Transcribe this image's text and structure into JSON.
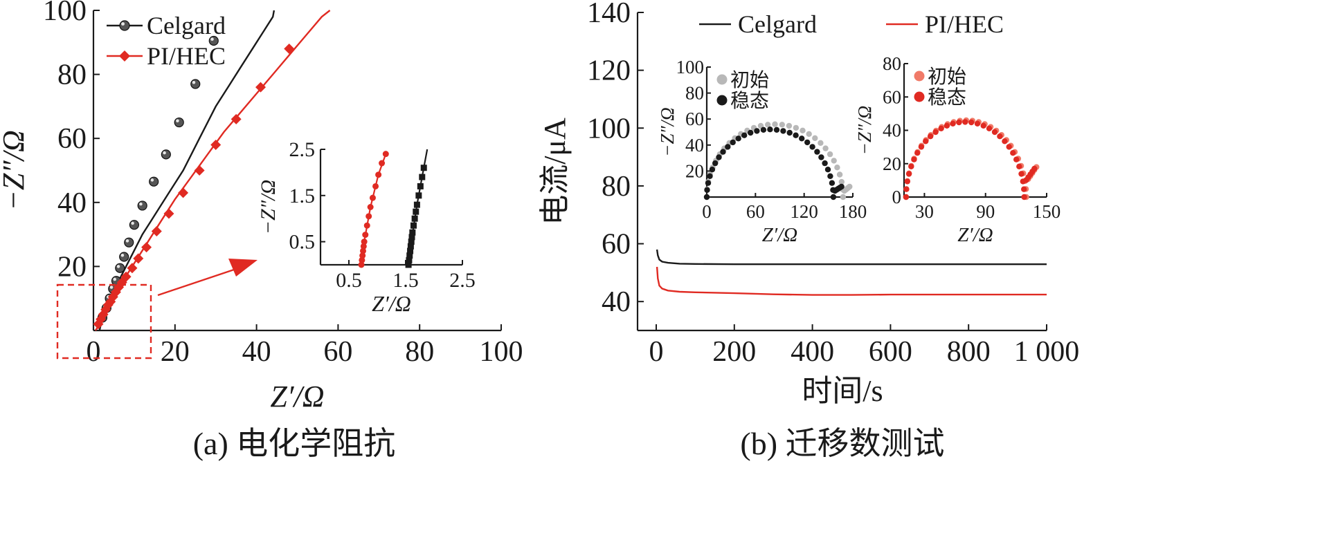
{
  "chart_data": [
    {
      "id": "a_main",
      "type": "scatter",
      "caption": "(a) 电化学阻抗",
      "xlabel": "Z′/Ω",
      "ylabel": "−Z″/Ω",
      "xlim": [
        0,
        100
      ],
      "ylim": [
        0,
        100
      ],
      "xticks": [
        0,
        20,
        40,
        60,
        80,
        100
      ],
      "yticks": [
        20,
        40,
        60,
        80,
        100
      ],
      "legend_position": "top-left",
      "grid": false,
      "series": [
        {
          "name": "Celgard",
          "color": "#1a1a1a",
          "marker": "sphere",
          "line": [
            [
              1.5,
              0
            ],
            [
              2,
              3
            ],
            [
              3,
              6
            ],
            [
              4,
              9
            ],
            [
              6,
              15
            ],
            [
              8,
              20
            ],
            [
              10,
              25
            ],
            [
              12,
              30
            ],
            [
              14,
              34
            ],
            [
              16,
              38
            ],
            [
              18,
              42
            ],
            [
              20,
              46
            ],
            [
              22,
              50
            ],
            [
              24,
              55
            ],
            [
              26,
              60
            ],
            [
              28,
              65
            ],
            [
              30,
              70
            ],
            [
              33,
              76
            ],
            [
              36,
              82
            ],
            [
              40,
              90
            ],
            [
              44,
              98
            ],
            [
              44.3,
              100
            ]
          ],
          "points": [
            [
              2.2,
              4
            ],
            [
              3.2,
              7
            ],
            [
              4,
              10
            ],
            [
              4.8,
              13
            ],
            [
              5.6,
              15.5
            ],
            [
              6.5,
              19.5
            ],
            [
              7.5,
              23
            ],
            [
              8.7,
              27.5
            ],
            [
              10,
              33
            ],
            [
              12,
              39
            ],
            [
              14.8,
              46.5
            ],
            [
              17.8,
              55
            ],
            [
              21,
              65
            ],
            [
              25,
              77
            ],
            [
              29.5,
              90.5
            ]
          ]
        },
        {
          "name": "PI/HEC",
          "color": "#e02a22",
          "marker": "diamond",
          "line": [
            [
              0.5,
              0
            ],
            [
              1,
              1
            ],
            [
              2,
              3
            ],
            [
              3,
              6
            ],
            [
              4,
              9
            ],
            [
              5,
              11
            ],
            [
              6,
              13
            ],
            [
              8,
              17
            ],
            [
              10,
              21
            ],
            [
              12,
              25
            ],
            [
              14,
              29
            ],
            [
              16,
              33
            ],
            [
              18,
              37
            ],
            [
              20,
              41
            ],
            [
              24,
              48
            ],
            [
              28,
              55
            ],
            [
              32,
              62
            ],
            [
              36,
              68
            ],
            [
              40,
              74
            ],
            [
              44,
              80
            ],
            [
              48,
              86
            ],
            [
              52,
              92
            ],
            [
              56,
              98
            ],
            [
              58,
              100
            ]
          ],
          "points": [
            [
              1.2,
              2
            ],
            [
              1.8,
              3.5
            ],
            [
              2.4,
              5
            ],
            [
              3,
              6.5
            ],
            [
              3.6,
              8
            ],
            [
              4.2,
              9
            ],
            [
              4.8,
              10.5
            ],
            [
              5.5,
              12
            ],
            [
              6.2,
              13.5
            ],
            [
              7,
              15
            ],
            [
              8,
              16.8
            ],
            [
              9.5,
              19.5
            ],
            [
              11,
              22.5
            ],
            [
              13,
              26
            ],
            [
              15.5,
              31
            ],
            [
              18.5,
              36.5
            ],
            [
              22,
              43
            ],
            [
              26,
              50
            ],
            [
              30,
              58
            ],
            [
              35,
              66
            ],
            [
              41,
              76
            ],
            [
              48,
              88
            ]
          ]
        }
      ],
      "annotation": "dashed zoom box with arrow pointing to inset"
    },
    {
      "id": "a_inset",
      "type": "scatter",
      "xlabel": "Z′/Ω",
      "ylabel": "−Z″/Ω",
      "xlim": [
        0,
        2.5
      ],
      "ylim": [
        0,
        2.5
      ],
      "xticks": [
        0.5,
        1.5,
        2.5
      ],
      "yticks": [
        0.5,
        1.5,
        2.5
      ],
      "series": [
        {
          "name": "Celgard",
          "color": "#1a1a1a",
          "marker": "square",
          "points": [
            [
              1.55,
              0
            ],
            [
              1.56,
              0.1
            ],
            [
              1.57,
              0.2
            ],
            [
              1.58,
              0.3
            ],
            [
              1.59,
              0.4
            ],
            [
              1.6,
              0.5
            ],
            [
              1.61,
              0.6
            ],
            [
              1.62,
              0.7
            ],
            [
              1.64,
              0.85
            ],
            [
              1.66,
              1.0
            ],
            [
              1.68,
              1.15
            ],
            [
              1.7,
              1.3
            ],
            [
              1.73,
              1.5
            ],
            [
              1.76,
              1.7
            ],
            [
              1.79,
              1.9
            ],
            [
              1.82,
              2.1
            ]
          ],
          "line": [
            [
              1.55,
              0
            ],
            [
              1.6,
              0.5
            ],
            [
              1.7,
              1.3
            ],
            [
              1.82,
              2.1
            ],
            [
              1.88,
              2.5
            ]
          ]
        },
        {
          "name": "PI/HEC",
          "color": "#e02a22",
          "marker": "circle",
          "points": [
            [
              0.72,
              0
            ],
            [
              0.73,
              0.1
            ],
            [
              0.74,
              0.2
            ],
            [
              0.75,
              0.3
            ],
            [
              0.76,
              0.4
            ],
            [
              0.77,
              0.5
            ],
            [
              0.79,
              0.65
            ],
            [
              0.82,
              0.85
            ],
            [
              0.85,
              1.05
            ],
            [
              0.88,
              1.25
            ],
            [
              0.92,
              1.45
            ],
            [
              0.97,
              1.7
            ],
            [
              1.02,
              1.95
            ],
            [
              1.08,
              2.2
            ],
            [
              1.15,
              2.4
            ]
          ],
          "line": [
            [
              0.72,
              0
            ],
            [
              0.77,
              0.5
            ],
            [
              0.88,
              1.25
            ],
            [
              1.02,
              1.95
            ],
            [
              1.15,
              2.4
            ]
          ]
        }
      ]
    },
    {
      "id": "b_main",
      "type": "line",
      "caption": "(b) 迁移数测试",
      "xlabel": "时间/s",
      "ylabel": "电流/μA",
      "xlim": [
        -10,
        1000
      ],
      "ylim": [
        30,
        140
      ],
      "xticks": [
        0,
        200,
        400,
        600,
        800,
        1000
      ],
      "xtick_labels": [
        "0",
        "200",
        "400",
        "600",
        "800",
        "1 000"
      ],
      "yticks": [
        40,
        60,
        80,
        100,
        120,
        140
      ],
      "legend_position": "top",
      "grid": false,
      "series": [
        {
          "name": "Celgard",
          "color": "#1a1a1a",
          "points": [
            [
              2,
              58
            ],
            [
              4,
              56
            ],
            [
              8,
              54.5
            ],
            [
              15,
              53.8
            ],
            [
              30,
              53.4
            ],
            [
              60,
              53.1
            ],
            [
              100,
              53
            ],
            [
              200,
              52.9
            ],
            [
              400,
              52.9
            ],
            [
              600,
              52.9
            ],
            [
              800,
              52.9
            ],
            [
              1000,
              52.9
            ]
          ]
        },
        {
          "name": "PI/HEC",
          "color": "#e02a22",
          "points": [
            [
              2,
              52
            ],
            [
              4,
              48
            ],
            [
              8,
              45.5
            ],
            [
              15,
              44.5
            ],
            [
              30,
              43.8
            ],
            [
              60,
              43.4
            ],
            [
              100,
              43.2
            ],
            [
              200,
              42.9
            ],
            [
              300,
              42.5
            ],
            [
              400,
              42.3
            ],
            [
              500,
              42.3
            ],
            [
              600,
              42.4
            ],
            [
              800,
              42.4
            ],
            [
              1000,
              42.4
            ]
          ]
        }
      ]
    },
    {
      "id": "b_inset_celgard",
      "type": "scatter",
      "xlabel": "Z′/Ω",
      "ylabel": "−Z″/Ω",
      "xlim": [
        0,
        180
      ],
      "ylim": [
        0,
        100
      ],
      "xticks": [
        0,
        60,
        120,
        180
      ],
      "yticks": [
        20,
        40,
        60,
        80,
        100
      ],
      "legend_position": "top-left",
      "series": [
        {
          "name": "初始",
          "color": "#b8b8b8",
          "arc": {
            "start": 0,
            "end": 168,
            "peak": 56,
            "tail_end": 176,
            "tail_y": 8
          }
        },
        {
          "name": "稳态",
          "color": "#1a1a1a",
          "arc": {
            "start": 0,
            "end": 156,
            "peak": 52,
            "tail_end": 166,
            "tail_y": 8
          }
        }
      ]
    },
    {
      "id": "b_inset_pihec",
      "type": "scatter",
      "xlabel": "Z′/Ω",
      "ylabel": "−Z″/Ω",
      "xlim": [
        10,
        150
      ],
      "ylim": [
        0,
        80
      ],
      "xticks": [
        30,
        90,
        150
      ],
      "yticks": [
        0,
        20,
        40,
        60,
        80
      ],
      "legend_position": "top-left",
      "series": [
        {
          "name": "初始",
          "color": "#f07a68",
          "arc": {
            "start": 12,
            "end": 130,
            "peak": 46,
            "tail_end": 140,
            "tail_y": 18
          }
        },
        {
          "name": "稳态",
          "color": "#e02a22",
          "arc": {
            "start": 12,
            "end": 128,
            "peak": 45,
            "tail_end": 138,
            "tail_y": 17
          }
        }
      ]
    }
  ]
}
